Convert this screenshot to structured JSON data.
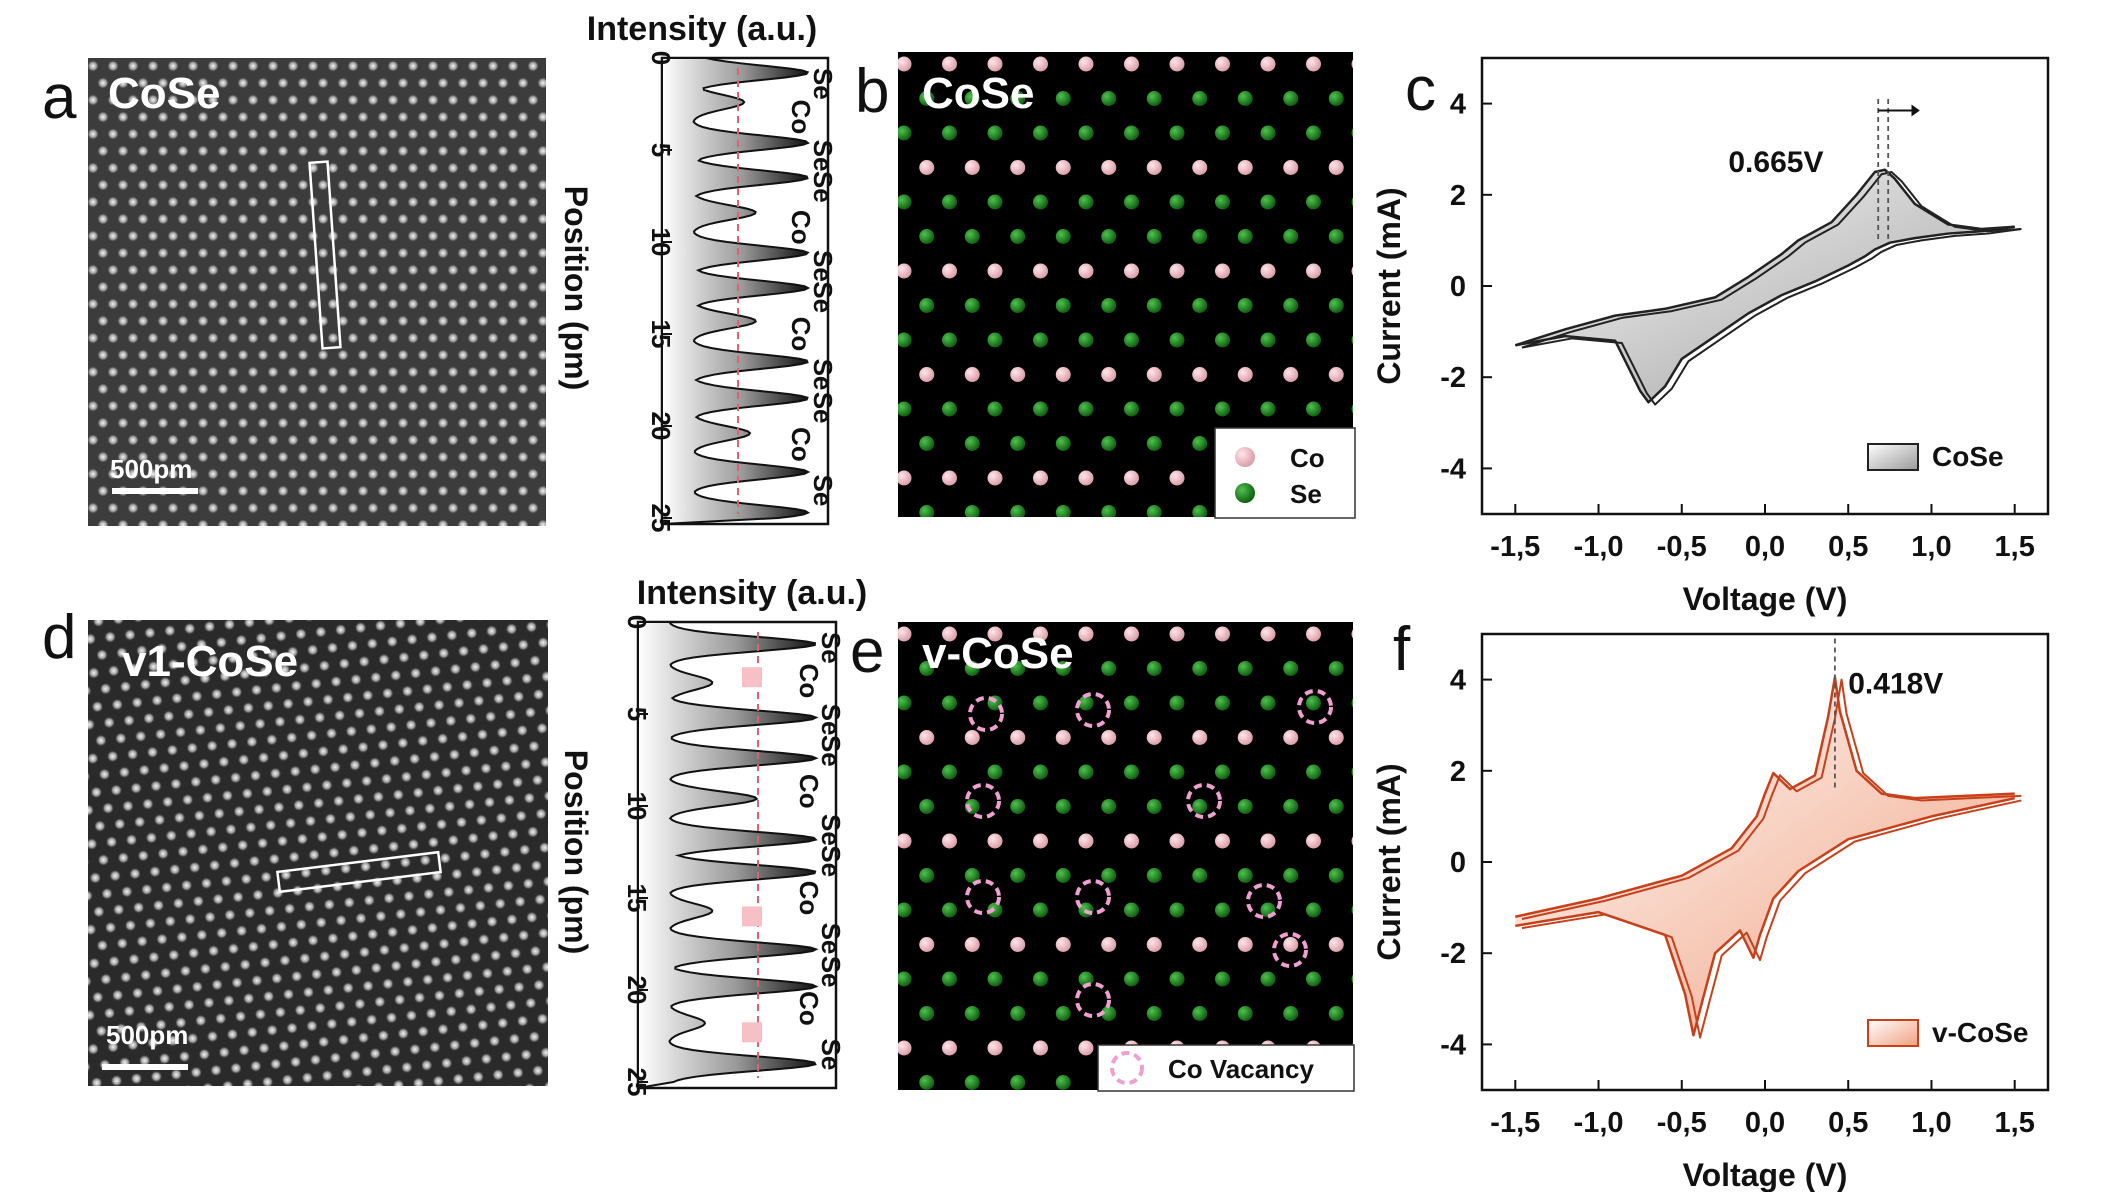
{
  "panels": {
    "a": {
      "letter": "a",
      "title": "CoSe",
      "scalebar": "500pm"
    },
    "b": {
      "letter": "b",
      "title": "CoSe"
    },
    "c": {
      "letter": "c"
    },
    "d": {
      "letter": "d",
      "title": "v1-CoSe",
      "scalebar": "500pm"
    },
    "e": {
      "letter": "e",
      "title": "v-CoSe"
    },
    "f": {
      "letter": "f"
    }
  },
  "profile_top": {
    "xlabel": "Intensity (a.u.)",
    "ylabel": "Position (pm)",
    "ticks": [
      "0",
      "5",
      "10",
      "15",
      "20",
      "25"
    ],
    "atoms": [
      "Se",
      "Co",
      "Se",
      "Se",
      "Co",
      "Se",
      "Se",
      "Co",
      "Se",
      "Se",
      "Co",
      "Se"
    ]
  },
  "profile_bottom": {
    "xlabel": "Intensity (a.u.)",
    "ylabel": "Position (pm)",
    "ticks": [
      "0",
      "5",
      "10",
      "15",
      "20",
      "25"
    ],
    "atoms": [
      "Se",
      "Co",
      "Se",
      "Se",
      "Co",
      "Se",
      "Se",
      "Co",
      "Se",
      "Se",
      "Co",
      "Se"
    ]
  },
  "legend_b": [
    {
      "label": "Co",
      "color": "#f2b8c0"
    },
    {
      "label": "Se",
      "color": "#1e8a1e"
    }
  ],
  "legend_e": [
    {
      "label": "Co Vacancy",
      "color": "#f0a0d0"
    }
  ],
  "chart_data": [
    {
      "type": "line",
      "panel": "c",
      "xlabel": "Voltage (V)",
      "ylabel": "Current (mA)",
      "xlim": [
        -1.7,
        1.7
      ],
      "ylim": [
        -5,
        5
      ],
      "xticks": [
        "-1,5",
        "-1,0",
        "-0,5",
        "0,0",
        "0,5",
        "1,0",
        "1,5"
      ],
      "yticks": [
        "-4",
        "-2",
        "0",
        "2",
        "4"
      ],
      "annotation": "0.665V",
      "legend": "CoSe",
      "color": "#222222",
      "series": [
        {
          "x": [
            -1.5,
            -1.2,
            -0.9,
            -0.75,
            -0.7,
            -0.6,
            -0.5,
            -0.3,
            -0.1,
            0.1,
            0.3,
            0.5,
            0.6,
            0.66,
            0.75,
            0.9,
            1.1,
            1.3,
            1.5
          ],
          "y": [
            -1.3,
            -1.1,
            -1.2,
            -2.3,
            -2.55,
            -2.2,
            -1.6,
            -1.1,
            -0.6,
            -0.2,
            0.1,
            0.45,
            0.65,
            0.8,
            0.95,
            1.05,
            1.15,
            1.2,
            1.3
          ]
        },
        {
          "x": [
            1.5,
            1.3,
            1.1,
            0.9,
            0.78,
            0.72,
            0.66,
            0.55,
            0.4,
            0.2,
            0.1,
            -0.1,
            -0.3,
            -0.6,
            -0.9,
            -1.2,
            -1.5
          ],
          "y": [
            1.3,
            1.25,
            1.35,
            1.8,
            2.35,
            2.55,
            2.5,
            2.0,
            1.4,
            1.0,
            0.7,
            0.2,
            -0.25,
            -0.5,
            -0.65,
            -0.95,
            -1.3
          ]
        }
      ]
    },
    {
      "type": "line",
      "panel": "f",
      "xlabel": "Voltage (V)",
      "ylabel": "Current (mA)",
      "xlim": [
        -1.7,
        1.7
      ],
      "ylim": [
        -5,
        5
      ],
      "xticks": [
        "-1,5",
        "-1,0",
        "-0,5",
        "0,0",
        "0,5",
        "1,0",
        "1,5"
      ],
      "yticks": [
        "-4",
        "-2",
        "0",
        "2",
        "4"
      ],
      "annotation": "0.418V",
      "legend": "v-CoSe",
      "color": "#c8401a",
      "series": [
        {
          "x": [
            -1.5,
            -1.0,
            -0.6,
            -0.48,
            -0.43,
            -0.38,
            -0.3,
            -0.15,
            -0.07,
            -0.03,
            0.05,
            0.2,
            0.5,
            1.0,
            1.5
          ],
          "y": [
            -1.4,
            -1.1,
            -1.6,
            -2.9,
            -3.8,
            -3.1,
            -2.0,
            -1.5,
            -2.1,
            -1.6,
            -0.8,
            -0.2,
            0.5,
            1.0,
            1.4
          ]
        },
        {
          "x": [
            1.5,
            1.2,
            0.9,
            0.7,
            0.55,
            0.45,
            0.42,
            0.38,
            0.3,
            0.15,
            0.05,
            0.0,
            -0.05,
            -0.2,
            -0.5,
            -1.0,
            -1.5
          ],
          "y": [
            1.5,
            1.45,
            1.4,
            1.5,
            2.0,
            3.3,
            4.05,
            3.2,
            1.9,
            1.6,
            1.95,
            1.5,
            1.0,
            0.3,
            -0.3,
            -0.8,
            -1.2
          ]
        }
      ]
    }
  ]
}
